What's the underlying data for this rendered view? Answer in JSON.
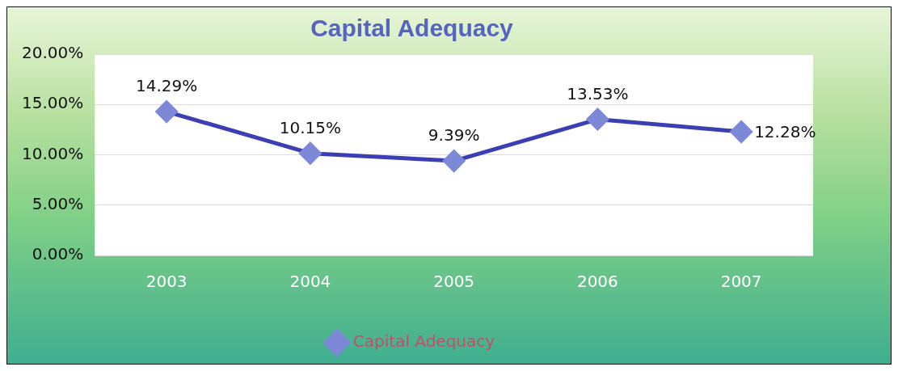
{
  "chart_data": {
    "type": "line",
    "title": "Capital Adequacy",
    "categories": [
      "2003",
      "2004",
      "2005",
      "2006",
      "2007"
    ],
    "series": [
      {
        "name": "Capital Adequacy",
        "color": "#3b3fb3",
        "values": [
          14.29,
          10.15,
          9.39,
          13.53,
          12.28
        ],
        "value_labels": [
          "14.29%",
          "10.15%",
          "9.39%",
          "13.53%",
          "12.28%"
        ]
      }
    ],
    "ylim": [
      0,
      20
    ],
    "yticks": [
      {
        "value": 0,
        "label": "0.00%"
      },
      {
        "value": 5,
        "label": "5.00%"
      },
      {
        "value": 10,
        "label": "10.00%"
      },
      {
        "value": 15,
        "label": "15.00%"
      },
      {
        "value": 20,
        "label": "20.00%"
      }
    ],
    "grid": "y",
    "legend": "bottom",
    "marker": "diamond",
    "line_style": "solid"
  }
}
